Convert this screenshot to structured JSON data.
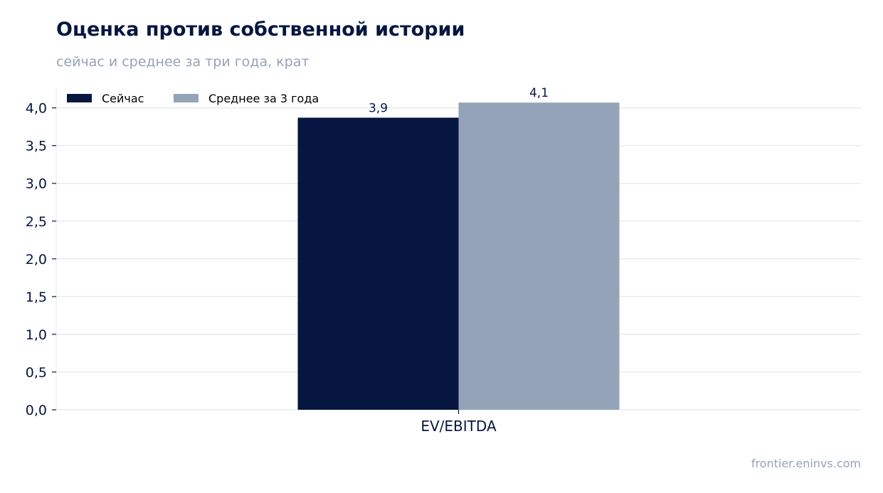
{
  "header": {
    "title": "Оценка против собственной истории",
    "subtitle": "сейчас и среднее за три года, крат"
  },
  "footer": {
    "source": "frontier.eninvs.com"
  },
  "colors": {
    "series_now": "#061640",
    "series_avg": "#94a3b8",
    "grid": "#e2e8f0",
    "axis_text": "#061640"
  },
  "chart_data": {
    "type": "bar",
    "categories": [
      "EV/EBITDA"
    ],
    "series": [
      {
        "name": "Сейчас",
        "values": [
          3.87
        ],
        "label": "3,9",
        "color": "#061640"
      },
      {
        "name": "Среднее за 3 года",
        "values": [
          4.07
        ],
        "label": "4,1",
        "color": "#94a3b8"
      }
    ],
    "ylim": [
      0,
      4.27
    ],
    "yticks": [
      {
        "value": 0.0,
        "label": "0,0"
      },
      {
        "value": 0.5,
        "label": "0,5"
      },
      {
        "value": 1.0,
        "label": "1,0"
      },
      {
        "value": 1.5,
        "label": "1,5"
      },
      {
        "value": 2.0,
        "label": "2,0"
      },
      {
        "value": 2.5,
        "label": "2,5"
      },
      {
        "value": 3.0,
        "label": "3,0"
      },
      {
        "value": 3.5,
        "label": "3,5"
      },
      {
        "value": 4.0,
        "label": "4,0"
      }
    ],
    "xlabel": "",
    "ylabel": "",
    "grid": true,
    "legend_position": "top-left"
  }
}
